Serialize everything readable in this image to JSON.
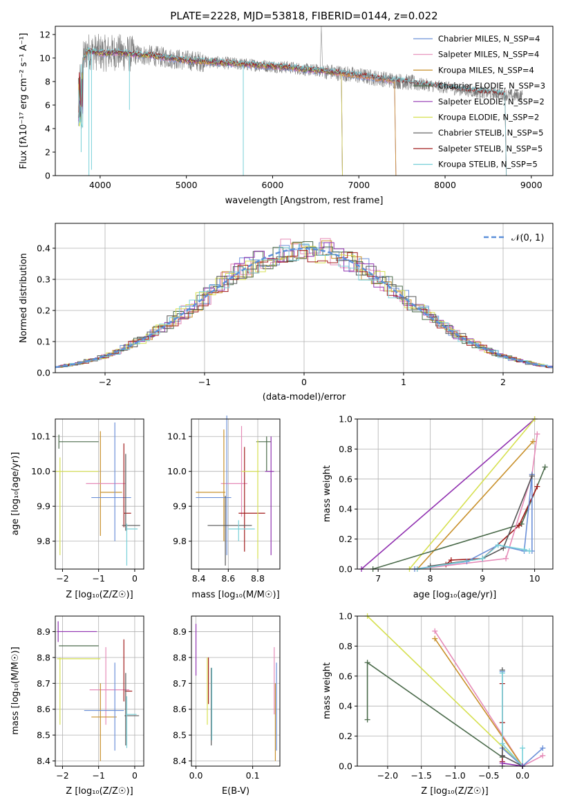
{
  "panel_spectrum": {
    "title": "PLATE=2228, MJD=53818, FIBERID=0144, z=0.022",
    "xlabel": "wavelength [Angstrom, rest frame]",
    "ylabel": "Flux [fλ10⁻¹⁷ erg cm⁻² s⁻¹ A⁻¹]",
    "xticks": [
      "4000",
      "5000",
      "6000",
      "7000",
      "8000",
      "9000"
    ],
    "yticks": [
      "0",
      "2",
      "4",
      "6",
      "8",
      "10",
      "12"
    ],
    "legend": [
      "Chabrier MILES, N_SSP=4",
      "Salpeter MILES, N_SSP=4",
      "Kroupa MILES, N_SSP=4",
      "Chabrier ELODIE, N_SSP=3",
      "Salpeter ELODIE, N_SSP=2",
      "Kroupa ELODIE, N_SSP=2",
      "Chabrier STELIB, N_SSP=5",
      "Salpeter STELIB, N_SSP=5",
      "Kroupa STELIB, N_SSP=5"
    ]
  },
  "panel_hist": {
    "xlabel": "(data-model)/error",
    "ylabel": "Normed distribution",
    "xticks": [
      "−2",
      "−1",
      "0",
      "1",
      "2"
    ],
    "yticks": [
      "0.0",
      "0.1",
      "0.2",
      "0.3",
      "0.4"
    ],
    "legend": "𝒩(0, 1)"
  },
  "panel_age_Z": {
    "xlabel": "Z [log₁₀(Z/Z☉)]",
    "ylabel": "age  [log₁₀(age/yr)]",
    "xticks": [
      "−2",
      "−1",
      "0"
    ],
    "yticks": [
      "9.8",
      "9.9",
      "10.0",
      "10.1"
    ]
  },
  "panel_age_mass": {
    "xlabel": "mass [log₁₀(M/M☉)]",
    "xticks": [
      "8.4",
      "8.6",
      "8.8"
    ],
    "yticks": [
      "9.8",
      "9.9",
      "10.0",
      "10.1"
    ]
  },
  "panel_weight_age": {
    "xlabel": "age  [log₁₀(age/yr)]",
    "ylabel": "mass weight",
    "xticks": [
      "7",
      "8",
      "9",
      "10"
    ],
    "yticks": [
      "0.0",
      "0.2",
      "0.4",
      "0.6",
      "0.8",
      "1.0"
    ]
  },
  "panel_mass_Z": {
    "xlabel": "Z [log₁₀(Z/Z☉)]",
    "ylabel": "mass [log₁₀(M/M☉)]",
    "xticks": [
      "−2",
      "−1",
      "0"
    ],
    "yticks": [
      "8.4",
      "8.5",
      "8.6",
      "8.7",
      "8.8",
      "8.9"
    ]
  },
  "panel_mass_ebv": {
    "xlabel": "E(B-V)",
    "xticks": [
      "0.0",
      "0.1"
    ],
    "yticks": [
      "8.4",
      "8.5",
      "8.6",
      "8.7",
      "8.8",
      "8.9"
    ]
  },
  "panel_weight_Z": {
    "xlabel": "Z [log₁₀(Z/Z☉)]",
    "ylabel": "mass weight",
    "xticks": [
      "−2.0",
      "−1.5",
      "−1.0",
      "−0.5",
      "0.0"
    ],
    "yticks": [
      "0.0",
      "0.2",
      "0.4",
      "0.6",
      "0.8",
      "1.0"
    ]
  },
  "chart_data": [
    {
      "type": "line",
      "title": "PLATE=2228, MJD=53818, FIBERID=0144, z=0.022",
      "xlabel": "wavelength [Angstrom, rest frame]",
      "ylabel": "Flux [fλ10⁻¹⁷ erg cm⁻² s⁻¹ A⁻¹]",
      "xlim": [
        3480,
        9250
      ],
      "ylim": [
        0,
        12.7
      ],
      "legend_position": "top-right",
      "colors": [
        "#6a8fd8",
        "#e58ab7",
        "#c8902a",
        "#4a6a4a",
        "#9030b0",
        "#d6e050",
        "#555555",
        "#a01818",
        "#78d0d8"
      ],
      "continuum": {
        "x": [
          3750,
          3850,
          3950,
          4050,
          4200,
          4400,
          4600,
          4800,
          5000,
          5200,
          5400,
          5600,
          5800,
          6000,
          6200,
          6400,
          6600,
          6800,
          7000,
          7200,
          7400,
          7600,
          7800,
          8000,
          8200,
          8400,
          8600,
          8800
        ],
        "y": [
          9.0,
          10.6,
          10.5,
          10.4,
          10.5,
          10.3,
          10.2,
          10.0,
          9.8,
          9.7,
          9.6,
          9.5,
          9.4,
          9.3,
          9.2,
          9.0,
          8.9,
          8.7,
          8.5,
          8.3,
          8.1,
          7.9,
          7.7,
          7.5,
          7.3,
          7.1,
          7.0,
          6.8
        ]
      },
      "grey_data_extent": [
        3750,
        8900
      ],
      "model_extent": {
        "MILES": [
          3750,
          7420
        ],
        "ELODIE": [
          3750,
          6800
        ],
        "STELIB": [
          3750,
          8700
        ]
      }
    },
    {
      "type": "line",
      "xlabel": "(data-model)/error",
      "ylabel": "Normed distribution",
      "xlim": [
        -2.5,
        2.5
      ],
      "ylim": [
        0,
        0.48
      ],
      "grid": true,
      "legend_position": "top-right",
      "series": [
        {
          "name": "𝒩(0, 1)",
          "function": "gaussian",
          "mean": 0,
          "sigma": 1,
          "style": "dashed"
        }
      ],
      "histogram_bin_width": 0.1,
      "histogram_count": 9
    },
    {
      "type": "scatter",
      "xlabel": "Z [log₁₀(Z/Z☉)]",
      "ylabel": "age  [log₁₀(age/yr)]",
      "xlim": [
        -2.2,
        0.25
      ],
      "ylim": [
        9.72,
        10.15
      ],
      "grid": true,
      "errorbars": [
        {
          "x": -1.55,
          "xerr": 0.55,
          "y": 10.085,
          "yerr": 0.0,
          "color": "#4a6a4a"
        },
        {
          "x": -2.1,
          "xerr": 0.0,
          "y": 10.085,
          "yerr": 0.02,
          "color": "#4a6a4a"
        },
        {
          "x": -0.95,
          "xerr": 0.0,
          "y": 9.965,
          "yerr": 0.15,
          "color": "#c8902a"
        },
        {
          "x": -0.8,
          "xerr": 0.55,
          "y": 9.965,
          "yerr": 0.0,
          "color": "#e58ab7"
        },
        {
          "x": -0.65,
          "xerr": 0.3,
          "y": 9.94,
          "yerr": 0.0,
          "color": "#c8902a"
        },
        {
          "x": -0.55,
          "xerr": 0.0,
          "y": 9.97,
          "yerr": 0.17,
          "color": "#6a8fd8"
        },
        {
          "x": -0.65,
          "xerr": 0.55,
          "y": 9.925,
          "yerr": 0.0,
          "color": "#6a8fd8"
        },
        {
          "x": -1.6,
          "xerr": 0.6,
          "y": 10.0,
          "yerr": 0.0,
          "color": "#d6e050"
        },
        {
          "x": -2.07,
          "xerr": 0.0,
          "y": 9.9,
          "yerr": 0.14,
          "color": "#d6e050"
        },
        {
          "x": -0.3,
          "xerr": 0.0,
          "y": 9.96,
          "yerr": 0.12,
          "color": "#a01818"
        },
        {
          "x": -0.2,
          "xerr": 0.1,
          "y": 9.88,
          "yerr": 0.0,
          "color": "#a01818"
        },
        {
          "x": -0.25,
          "xerr": 0.0,
          "y": 9.94,
          "yerr": 0.11,
          "color": "#555555"
        },
        {
          "x": -0.1,
          "xerr": 0.25,
          "y": 9.845,
          "yerr": 0.0,
          "color": "#555555"
        },
        {
          "x": -0.22,
          "xerr": 0.0,
          "y": 9.79,
          "yerr": 0.06,
          "color": "#78d0d8"
        },
        {
          "x": -0.08,
          "xerr": 0.16,
          "y": 9.835,
          "yerr": 0.0,
          "color": "#78d0d8"
        }
      ]
    },
    {
      "type": "scatter",
      "xlabel": "mass [log₁₀(M/M☉)]",
      "xlim": [
        8.35,
        8.95
      ],
      "ylim": [
        9.72,
        10.15
      ],
      "grid": true,
      "errorbars": [
        {
          "x": 8.84,
          "xerr": 0.05,
          "y": 10.085,
          "yerr": 0.0,
          "color": "#4a6a4a"
        },
        {
          "x": 8.86,
          "xerr": 0.0,
          "y": 10.05,
          "yerr": 0.05,
          "color": "#4a6a4a"
        },
        {
          "x": 8.89,
          "xerr": 0.0,
          "y": 9.93,
          "yerr": 0.17,
          "color": "#9030b0"
        },
        {
          "x": 8.88,
          "xerr": 0.03,
          "y": 10.0,
          "yerr": 0.0,
          "color": "#9030b0"
        },
        {
          "x": 8.64,
          "xerr": 0.09,
          "y": 9.965,
          "yerr": 0.0,
          "color": "#e58ab7"
        },
        {
          "x": 8.69,
          "xerr": 0.0,
          "y": 10.0,
          "yerr": 0.13,
          "color": "#e58ab7"
        },
        {
          "x": 8.57,
          "xerr": 0.0,
          "y": 9.96,
          "yerr": 0.16,
          "color": "#c8902a"
        },
        {
          "x": 8.48,
          "xerr": 0.1,
          "y": 9.94,
          "yerr": 0.0,
          "color": "#c8902a"
        },
        {
          "x": 8.59,
          "xerr": 0.0,
          "y": 9.96,
          "yerr": 0.2,
          "color": "#6a8fd8"
        },
        {
          "x": 8.5,
          "xerr": 0.12,
          "y": 9.925,
          "yerr": 0.0,
          "color": "#6a8fd8"
        },
        {
          "x": 8.71,
          "xerr": 0.0,
          "y": 9.92,
          "yerr": 0.15,
          "color": "#a01818"
        },
        {
          "x": 8.76,
          "xerr": 0.09,
          "y": 9.88,
          "yerr": 0.0,
          "color": "#a01818"
        },
        {
          "x": 8.8,
          "xerr": 0.0,
          "y": 9.92,
          "yerr": 0.17,
          "color": "#d6e050"
        },
        {
          "x": 8.75,
          "xerr": 0.06,
          "y": 10.0,
          "yerr": 0.0,
          "color": "#d6e050"
        },
        {
          "x": 8.61,
          "xerr": 0.15,
          "y": 9.845,
          "yerr": 0.0,
          "color": "#555555"
        },
        {
          "x": 8.58,
          "xerr": 0.0,
          "y": 9.83,
          "yerr": 0.1,
          "color": "#555555"
        },
        {
          "x": 8.69,
          "xerr": 0.09,
          "y": 9.835,
          "yerr": 0.0,
          "color": "#78d0d8"
        },
        {
          "x": 8.67,
          "xerr": 0.0,
          "y": 9.83,
          "yerr": 0.03,
          "color": "#78d0d8"
        }
      ]
    },
    {
      "type": "line",
      "xlabel": "age  [log₁₀(age/yr)]",
      "ylabel": "mass weight",
      "xlim": [
        6.6,
        10.35
      ],
      "ylim": [
        0,
        1.0
      ],
      "grid": true,
      "series": [
        {
          "color": "#9030b0",
          "x": [
            6.68,
            10.0
          ],
          "y": [
            0.0,
            1.0
          ]
        },
        {
          "color": "#d6e050",
          "x": [
            7.6,
            10.0
          ],
          "y": [
            0.0,
            1.0
          ]
        },
        {
          "color": "#c8902a",
          "x": [
            7.75,
            9.97
          ],
          "y": [
            0.0,
            0.85
          ]
        },
        {
          "color": "#4a6a4a",
          "x": [
            6.9,
            9.75,
            10.2
          ],
          "y": [
            0.0,
            0.3,
            0.68
          ]
        },
        {
          "color": "#a01818",
          "x": [
            8.3,
            8.4,
            9.0,
            9.7,
            10.05
          ],
          "y": [
            0.03,
            0.06,
            0.07,
            0.29,
            0.55
          ]
        },
        {
          "color": "#e58ab7",
          "x": [
            7.75,
            9.45,
            9.95,
            10.05
          ],
          "y": [
            0.0,
            0.07,
            0.63,
            0.9
          ]
        },
        {
          "color": "#6a8fd8",
          "x": [
            7.7,
            8.7,
            9.3,
            9.8,
            9.95,
            9.95
          ],
          "y": [
            0.0,
            0.05,
            0.16,
            0.12,
            0.63,
            0.12
          ]
        },
        {
          "color": "#555555",
          "x": [
            8.0,
            9.0,
            9.4,
            9.95
          ],
          "y": [
            0.02,
            0.07,
            0.14,
            0.62
          ]
        },
        {
          "color": "#78d0d8",
          "x": [
            7.75,
            9.0,
            9.3,
            9.8,
            9.9
          ],
          "y": [
            0.0,
            0.07,
            0.16,
            0.13,
            0.12
          ]
        }
      ]
    },
    {
      "type": "scatter",
      "xlabel": "Z [log₁₀(Z/Z☉)]",
      "ylabel": "mass [log₁₀(M/M☉)]",
      "xlim": [
        -2.2,
        0.25
      ],
      "ylim": [
        8.38,
        8.96
      ],
      "grid": true,
      "errorbars": [
        {
          "x": -1.6,
          "xerr": 0.55,
          "y": 8.9,
          "yerr": 0.0,
          "color": "#9030b0"
        },
        {
          "x": -2.12,
          "xerr": 0.0,
          "y": 8.9,
          "yerr": 0.04,
          "color": "#9030b0"
        },
        {
          "x": -1.55,
          "xerr": 0.55,
          "y": 8.845,
          "yerr": 0.0,
          "color": "#4a6a4a"
        },
        {
          "x": -1.55,
          "xerr": 0.6,
          "y": 8.795,
          "yerr": 0.0,
          "color": "#d6e050"
        },
        {
          "x": -2.07,
          "xerr": 0.0,
          "y": 8.67,
          "yerr": 0.13,
          "color": "#d6e050"
        },
        {
          "x": -0.8,
          "xerr": 0.0,
          "y": 8.69,
          "yerr": 0.15,
          "color": "#e58ab7"
        },
        {
          "x": -0.7,
          "xerr": 0.55,
          "y": 8.675,
          "yerr": 0.0,
          "color": "#e58ab7"
        },
        {
          "x": -0.95,
          "xerr": 0.0,
          "y": 8.55,
          "yerr": 0.15,
          "color": "#c8902a"
        },
        {
          "x": -0.85,
          "xerr": 0.35,
          "y": 8.57,
          "yerr": 0.0,
          "color": "#c8902a"
        },
        {
          "x": -0.55,
          "xerr": 0.0,
          "y": 8.61,
          "yerr": 0.17,
          "color": "#6a8fd8"
        },
        {
          "x": -0.85,
          "xerr": 0.55,
          "y": 8.595,
          "yerr": 0.0,
          "color": "#6a8fd8"
        },
        {
          "x": -0.3,
          "xerr": 0.0,
          "y": 8.75,
          "yerr": 0.12,
          "color": "#a01818"
        },
        {
          "x": -0.17,
          "xerr": 0.1,
          "y": 8.67,
          "yerr": 0.0,
          "color": "#a01818"
        },
        {
          "x": -0.25,
          "xerr": 0.0,
          "y": 8.6,
          "yerr": 0.14,
          "color": "#555555"
        },
        {
          "x": -0.08,
          "xerr": 0.2,
          "y": 8.575,
          "yerr": 0.0,
          "color": "#555555"
        },
        {
          "x": -0.22,
          "xerr": 0.0,
          "y": 8.55,
          "yerr": 0.1,
          "color": "#78d0d8"
        },
        {
          "x": -0.1,
          "xerr": 0.15,
          "y": 8.58,
          "yerr": 0.0,
          "color": "#78d0d8"
        }
      ]
    },
    {
      "type": "scatter",
      "xlabel": "E(B-V)",
      "xlim": [
        -0.008,
        0.148
      ],
      "ylim": [
        8.38,
        8.96
      ],
      "grid": true,
      "errorbars": [
        {
          "x": 0.0,
          "xerr": 0.0,
          "y": 8.83,
          "yerr": 0.1,
          "color": "#9030b0"
        },
        {
          "x": 0.02,
          "xerr": 0.0,
          "y": 8.67,
          "yerr": 0.13,
          "color": "#d6e050"
        },
        {
          "x": 0.022,
          "xerr": 0.0,
          "y": 8.71,
          "yerr": 0.09,
          "color": "#a01818"
        },
        {
          "x": 0.027,
          "xerr": 0.0,
          "y": 8.61,
          "yerr": 0.15,
          "color": "#555555"
        },
        {
          "x": 0.028,
          "xerr": 0.0,
          "y": 8.62,
          "yerr": 0.14,
          "color": "#78d0d8"
        },
        {
          "x": 0.138,
          "xerr": 0.0,
          "y": 8.71,
          "yerr": 0.13,
          "color": "#e58ab7"
        },
        {
          "x": 0.14,
          "xerr": 0.0,
          "y": 8.55,
          "yerr": 0.15,
          "color": "#c8902a"
        },
        {
          "x": 0.142,
          "xerr": 0.0,
          "y": 8.61,
          "yerr": 0.17,
          "color": "#6a8fd8"
        }
      ]
    },
    {
      "type": "line",
      "xlabel": "Z [log₁₀(Z/Z☉)]",
      "ylabel": "mass weight",
      "xlim": [
        -2.45,
        0.45
      ],
      "ylim": [
        0,
        1.0
      ],
      "grid": true,
      "series": [
        {
          "color": "#d6e050",
          "x": [
            -2.3,
            0.0
          ],
          "y": [
            1.0,
            0.0
          ]
        },
        {
          "color": "#4a6a4a",
          "x": [
            -2.3,
            -2.3,
            -0.3,
            -0.3
          ],
          "y": [
            0.31,
            0.69,
            0.06,
            0.0
          ]
        },
        {
          "color": "#e58ab7",
          "x": [
            -1.3,
            0.0,
            0.3
          ],
          "y": [
            0.9,
            0.0,
            0.07
          ]
        },
        {
          "color": "#c8902a",
          "x": [
            -1.3,
            0.0
          ],
          "y": [
            0.85,
            0.0
          ]
        },
        {
          "color": "#6a8fd8",
          "x": [
            -0.3,
            -0.3,
            0.0,
            0.3
          ],
          "y": [
            0.63,
            0.12,
            0.0,
            0.12
          ]
        },
        {
          "color": "#a01818",
          "x": [
            -0.3,
            -0.3,
            -0.3
          ],
          "y": [
            0.55,
            0.29,
            0.03
          ]
        },
        {
          "color": "#555555",
          "x": [
            -0.3,
            -0.3,
            0.0
          ],
          "y": [
            0.64,
            0.07,
            0.0
          ]
        },
        {
          "color": "#78d0d8",
          "x": [
            -0.3,
            -0.3,
            0.0,
            0.0
          ],
          "y": [
            0.62,
            0.15,
            0.0,
            0.12
          ]
        },
        {
          "color": "#9030b0",
          "x": [
            -0.3,
            0.0
          ],
          "y": [
            0.02,
            0.0
          ]
        }
      ]
    }
  ]
}
